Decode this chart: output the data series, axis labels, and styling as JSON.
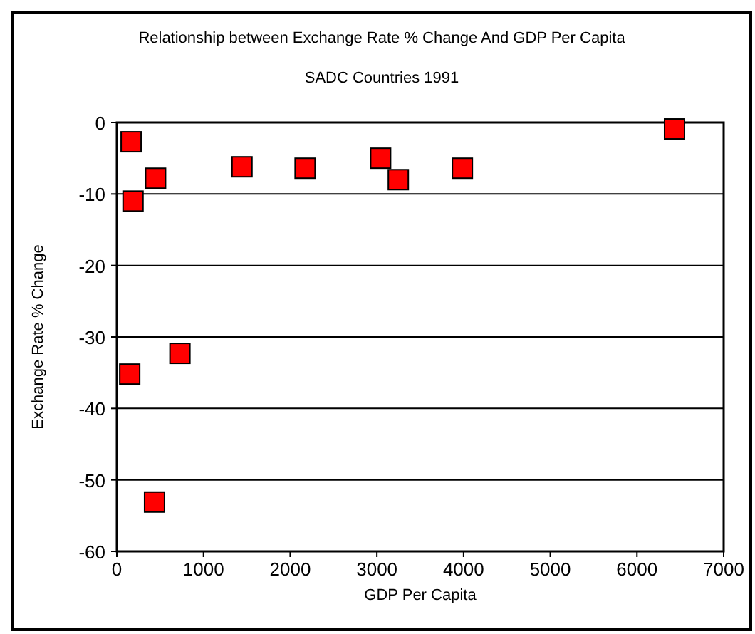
{
  "chart_data": {
    "type": "scatter",
    "title": "Relationship between Exchange Rate % Change And GDP Per Capita",
    "subtitle": "SADC Countries 1991",
    "xlabel": "GDP Per Capita",
    "ylabel": "Exchange Rate % Change",
    "x": [
      165,
      187,
      447,
      1444,
      2172,
      3043,
      3247,
      3986,
      6433,
      149,
      728,
      435
    ],
    "values": [
      -2.7,
      -11,
      -7.8,
      -6.2,
      -6.4,
      -5.0,
      -8.0,
      -6.4,
      -0.9,
      -35.2,
      -32.3,
      -53.1
    ],
    "color": "#ff0000",
    "marker": "square",
    "xlim": [
      0,
      7000
    ],
    "xticks": [
      0,
      1000,
      2000,
      3000,
      4000,
      5000,
      6000,
      7000
    ],
    "ylim": [
      -60,
      0
    ],
    "yticks": [
      -60,
      -50,
      -40,
      -30,
      -20,
      -10,
      0
    ],
    "grid": "y"
  }
}
